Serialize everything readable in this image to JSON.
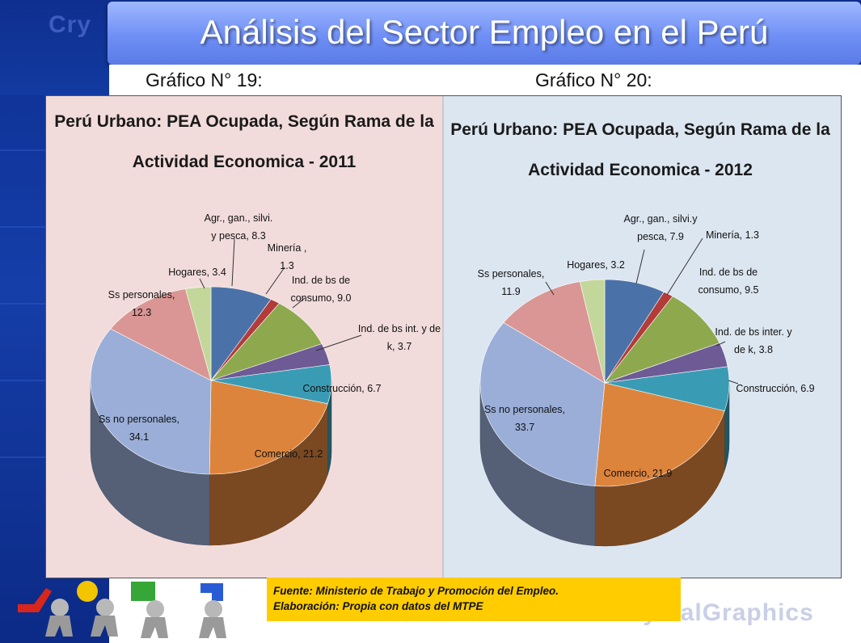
{
  "slide": {
    "title": "Análisis del Sector Empleo en el Perú",
    "watermark_top": "Cry",
    "watermark_bottom": "CrystalGraphics",
    "caption_left": "Gráfico N° 19:",
    "caption_right": "Gráfico N° 20:",
    "source_line1": "Fuente: Ministerio de Trabajo y Promoción del Empleo.",
    "source_line2": "Elaboración: Propia con datos del MTPE",
    "colors": {
      "left_band": "#153ea8",
      "title_bar": "#7f9cf8",
      "panel_2011": "#f2dcdb",
      "panel_2012": "#dce6f1",
      "source_box": "#ffcc00"
    }
  },
  "chart_data": [
    {
      "type": "pie",
      "title": "Perú Urbano: PEA Ocupada, Según Rama de la Actividad Economica - 2011",
      "title_lines": [
        "Perú Urbano: PEA Ocupada, Según Rama de la",
        "Actividad Economica - 2011"
      ],
      "slices": [
        {
          "label_lines": [
            "Agr., gan., silvi.",
            "y pesca, 8.3"
          ],
          "value": 8.3,
          "color": "#4a72a8"
        },
        {
          "label_lines": [
            "Minería ,",
            "1.3"
          ],
          "value": 1.3,
          "color": "#b23c3a"
        },
        {
          "label_lines": [
            "Ind. de bs de",
            "consumo, 9.0"
          ],
          "value": 9.0,
          "color": "#8ea84e"
        },
        {
          "label_lines": [
            "Ind. de bs int. y de",
            "k, 3.7"
          ],
          "value": 3.7,
          "color": "#6e5a94"
        },
        {
          "label_lines": [
            "Construcción, 6.7"
          ],
          "value": 6.7,
          "color": "#3a9cb4"
        },
        {
          "label_lines": [
            "Comercio, 21.2"
          ],
          "value": 21.2,
          "color": "#dd843c"
        },
        {
          "label_lines": [
            "Ss no personales,",
            "34.1"
          ],
          "value": 34.1,
          "color": "#9aaed8"
        },
        {
          "label_lines": [
            "Ss personales,",
            "12.3"
          ],
          "value": 12.3,
          "color": "#d99694"
        },
        {
          "label_lines": [
            "Hogares, 3.4"
          ],
          "value": 3.4,
          "color": "#c4d79b"
        }
      ]
    },
    {
      "type": "pie",
      "title": "Perú Urbano: PEA Ocupada, Según Rama de la Actividad Economica - 2012",
      "title_lines": [
        "Perú Urbano: PEA Ocupada, Según Rama de la",
        "Actividad Economica - 2012"
      ],
      "slices": [
        {
          "label_lines": [
            "Agr., gan., silvi.y",
            "pesca, 7.9"
          ],
          "value": 7.9,
          "color": "#4a72a8"
        },
        {
          "label_lines": [
            "Minería, 1.3"
          ],
          "value": 1.3,
          "color": "#b23c3a"
        },
        {
          "label_lines": [
            "Ind. de bs de",
            "consumo, 9.5"
          ],
          "value": 9.5,
          "color": "#8ea84e"
        },
        {
          "label_lines": [
            "Ind. de bs inter. y",
            "de k, 3.8"
          ],
          "value": 3.8,
          "color": "#6e5a94"
        },
        {
          "label_lines": [
            "Construcción, 6.9"
          ],
          "value": 6.9,
          "color": "#3a9cb4"
        },
        {
          "label_lines": [
            "Comercio, 21.9"
          ],
          "value": 21.9,
          "color": "#dd843c"
        },
        {
          "label_lines": [
            "Ss no personales,",
            "33.7"
          ],
          "value": 33.7,
          "color": "#9aaed8"
        },
        {
          "label_lines": [
            "Ss personales,",
            "11.9"
          ],
          "value": 11.9,
          "color": "#d99694"
        },
        {
          "label_lines": [
            "Hogares, 3.2"
          ],
          "value": 3.2,
          "color": "#c4d79b"
        }
      ]
    }
  ]
}
